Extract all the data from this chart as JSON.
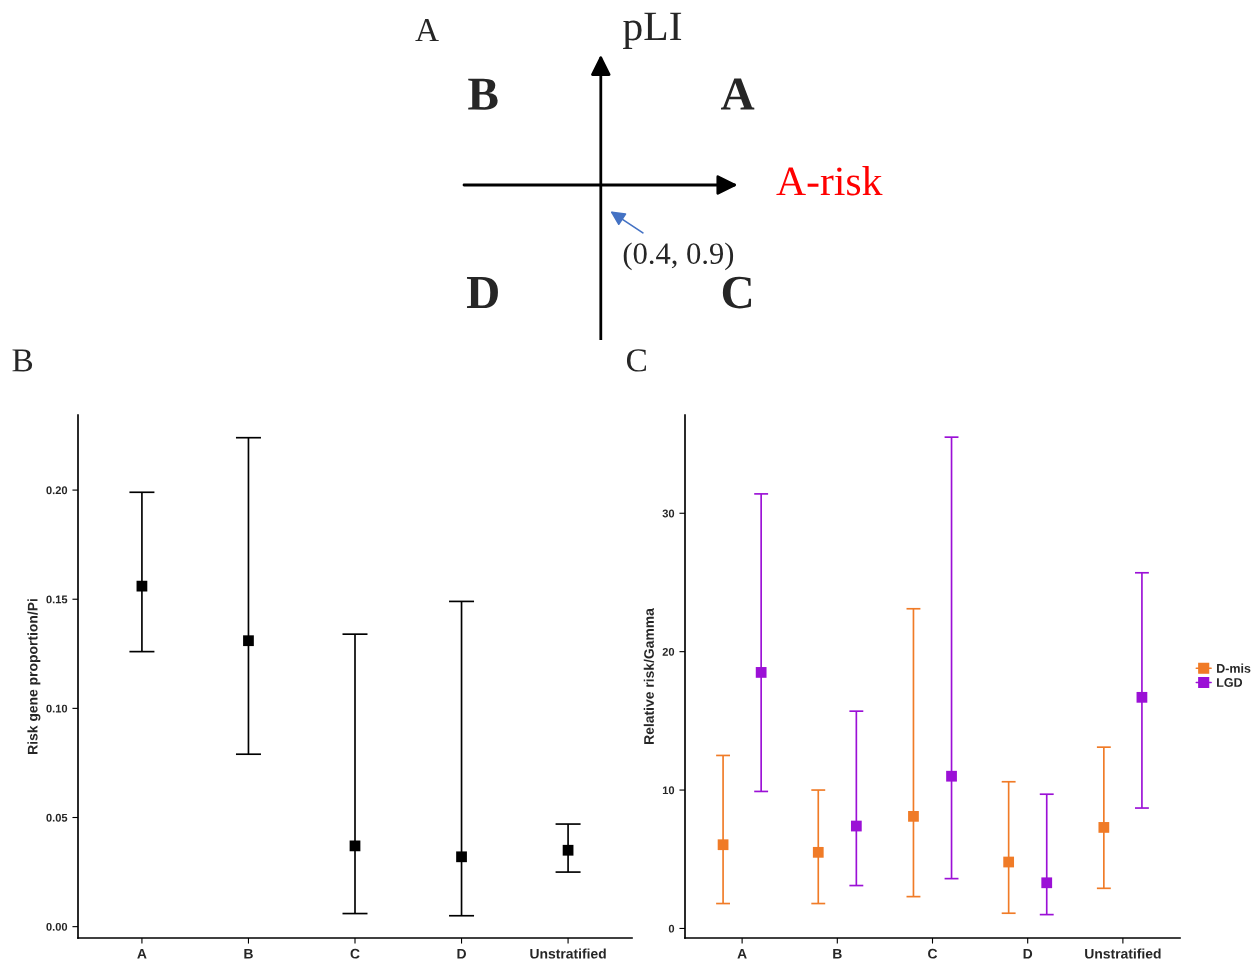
{
  "chart_data": [
    {
      "type": "other",
      "title": "A",
      "xlabel": "A-risk",
      "ylabel": "pLI",
      "annotations": [
        "B",
        "A",
        "D",
        "C",
        "(0.4, 0.9)"
      ]
    },
    {
      "type": "scatter",
      "title": "B",
      "ylabel": "Risk gene proportion/Pi",
      "categories": [
        "A",
        "B",
        "C",
        "D",
        "Unstratified"
      ],
      "ylim": [
        -0.0052,
        0.2344
      ],
      "yticks": [
        {
          "value": 0,
          "label": "0.00"
        },
        {
          "value": 0.05,
          "label": "0.05"
        },
        {
          "value": 0.1,
          "label": "0.10"
        },
        {
          "value": 0.15,
          "label": "0.15"
        },
        {
          "value": 0.2,
          "label": "0.20"
        }
      ],
      "marker": "square",
      "grid": false,
      "legend": false,
      "series": [
        {
          "color": "#000000",
          "values": [
            0.156,
            0.131,
            0.037,
            0.032,
            0.035
          ],
          "errors": [
            [
              0.126,
              0.199
            ],
            [
              0.079,
              0.224
            ],
            [
              0.006,
              0.134
            ],
            [
              0.005,
              0.149
            ],
            [
              0.025,
              0.047
            ]
          ]
        }
      ]
    },
    {
      "type": "scatter",
      "title": "C",
      "ylabel": "Relative risk/Gamma",
      "categories": [
        "A",
        "B",
        "C",
        "D",
        "Unstratified"
      ],
      "ylim": [
        -0.69,
        37.1
      ],
      "yticks": [
        0,
        10,
        20,
        30
      ],
      "marker": "square",
      "grid": false,
      "legend": "right",
      "series": [
        {
          "name": "D-mis",
          "color": "#f07b27",
          "values": [
            6.05,
            5.5,
            8.1,
            4.8,
            7.3
          ],
          "errors": [
            [
              1.8,
              12.5
            ],
            [
              1.8,
              10.0
            ],
            [
              2.3,
              23.1
            ],
            [
              1.1,
              10.6
            ],
            [
              2.9,
              13.1
            ]
          ]
        },
        {
          "name": "LGD",
          "color": "#9b10d6",
          "values": [
            18.5,
            7.4,
            11.0,
            3.3,
            16.7
          ],
          "errors": [
            [
              9.9,
              31.4
            ],
            [
              3.1,
              15.7
            ],
            [
              3.6,
              35.5
            ],
            [
              1.0,
              9.7
            ],
            [
              8.7,
              25.7
            ]
          ]
        }
      ]
    }
  ]
}
